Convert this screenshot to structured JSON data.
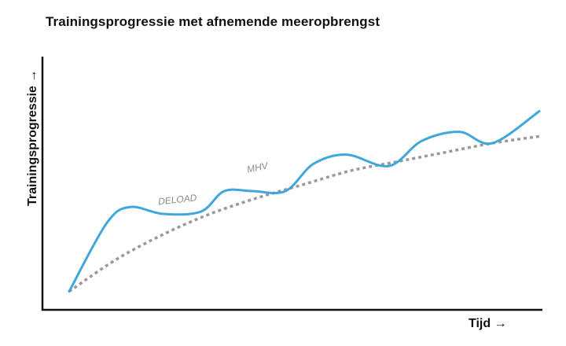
{
  "chart_data": {
    "type": "line",
    "title": "Trainingsprogressie met afnemende meeropbrengst",
    "xlabel": "Tijd →",
    "ylabel": "Trainingsprogressie →",
    "grid": false,
    "legend": "none",
    "series": [
      {
        "kind": "actual",
        "color": "#3fa7dc",
        "x": [
          0,
          0.08,
          0.13,
          0.2,
          0.28,
          0.33,
          0.39,
          0.46,
          0.52,
          0.59,
          0.68,
          0.75,
          0.83,
          0.9,
          1.0
        ],
        "y": [
          0.06,
          0.36,
          0.43,
          0.4,
          0.41,
          0.5,
          0.5,
          0.5,
          0.62,
          0.66,
          0.61,
          0.72,
          0.76,
          0.71,
          0.85
        ]
      },
      {
        "kind": "trend",
        "color": "#9a9a9a",
        "x": [
          0,
          0.1,
          0.2,
          0.3,
          0.4,
          0.5,
          0.6,
          0.7,
          0.8,
          0.9,
          1.0
        ],
        "y": [
          0.06,
          0.2,
          0.31,
          0.4,
          0.47,
          0.53,
          0.59,
          0.63,
          0.67,
          0.71,
          0.74
        ]
      }
    ],
    "annotations": [
      {
        "text": "DELOAD",
        "x": 0.19,
        "y": 0.44
      },
      {
        "text": "MHV",
        "x": 0.38,
        "y": 0.58
      }
    ]
  }
}
